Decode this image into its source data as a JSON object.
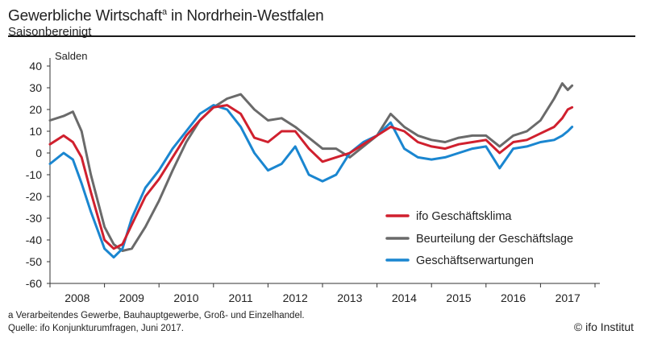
{
  "header": {
    "title": "Gewerbliche Wirtschaft",
    "title_mark": "a",
    "title_rest": " in Nordrhein-Westfalen",
    "subtitle": "Saisonbereinigt"
  },
  "footer": {
    "note": "a Verarbeitendes Gewerbe, Bauhauptgewerbe, Groß- und Einzelhandel.",
    "source": "Quelle: ifo Konjunkturumfragen, Juni 2017.",
    "credit": "© ifo Institut"
  },
  "chart_data": {
    "type": "line",
    "ylabel": "Salden",
    "ylim": [
      -60,
      40
    ],
    "yticks": [
      "40",
      "30",
      "20",
      "10",
      "0",
      "-10",
      "-20",
      "-30",
      "-40",
      "-50",
      "-60"
    ],
    "xlim": [
      2007.5,
      2017.5
    ],
    "categories": [
      "2008",
      "2009",
      "2010",
      "2011",
      "2012",
      "2013",
      "2014",
      "2015",
      "2016",
      "2017"
    ],
    "grid": false,
    "legend_position": "bottom-right",
    "series": [
      {
        "name": "ifo Geschäftsklima",
        "color": "#d0202e",
        "x": [
          2007.5,
          2007.75,
          2007.92,
          2008.08,
          2008.25,
          2008.5,
          2008.67,
          2008.83,
          2009.0,
          2009.25,
          2009.5,
          2009.75,
          2010.0,
          2010.25,
          2010.5,
          2010.75,
          2011.0,
          2011.25,
          2011.5,
          2011.75,
          2012.0,
          2012.25,
          2012.5,
          2012.75,
          2013.0,
          2013.25,
          2013.5,
          2013.75,
          2014.0,
          2014.25,
          2014.5,
          2014.75,
          2015.0,
          2015.25,
          2015.5,
          2015.75,
          2016.0,
          2016.25,
          2016.5,
          2016.75,
          2016.9,
          2017.0,
          2017.08
        ],
        "values": [
          4,
          8,
          5,
          -2,
          -18,
          -40,
          -44,
          -42,
          -33,
          -20,
          -12,
          -2,
          8,
          15,
          21,
          22,
          18,
          7,
          5,
          10,
          10,
          2,
          -4,
          -2,
          0,
          4,
          8,
          12,
          10,
          5,
          3,
          2,
          4,
          5,
          6,
          0,
          5,
          6,
          9,
          12,
          16,
          20,
          21
        ]
      },
      {
        "name": "Beurteilung der Geschäftslage",
        "color": "#6a6a6a",
        "x": [
          2007.5,
          2007.75,
          2007.92,
          2008.08,
          2008.25,
          2008.5,
          2008.67,
          2008.83,
          2009.0,
          2009.25,
          2009.5,
          2009.75,
          2010.0,
          2010.25,
          2010.5,
          2010.75,
          2011.0,
          2011.25,
          2011.5,
          2011.75,
          2012.0,
          2012.25,
          2012.5,
          2012.75,
          2013.0,
          2013.25,
          2013.5,
          2013.75,
          2014.0,
          2014.25,
          2014.5,
          2014.75,
          2015.0,
          2015.25,
          2015.5,
          2015.75,
          2016.0,
          2016.25,
          2016.5,
          2016.75,
          2016.9,
          2017.0,
          2017.08
        ],
        "values": [
          15,
          17,
          19,
          10,
          -10,
          -34,
          -42,
          -45,
          -44,
          -34,
          -22,
          -8,
          5,
          15,
          21,
          25,
          27,
          20,
          15,
          16,
          12,
          7,
          2,
          2,
          -2,
          3,
          8,
          18,
          12,
          8,
          6,
          5,
          7,
          8,
          8,
          3,
          8,
          10,
          15,
          25,
          32,
          29,
          31
        ]
      },
      {
        "name": "Geschäftserwartungen",
        "color": "#1a86d0",
        "x": [
          2007.5,
          2007.75,
          2007.92,
          2008.08,
          2008.25,
          2008.5,
          2008.67,
          2008.83,
          2009.0,
          2009.25,
          2009.5,
          2009.75,
          2010.0,
          2010.25,
          2010.5,
          2010.75,
          2011.0,
          2011.25,
          2011.5,
          2011.75,
          2012.0,
          2012.25,
          2012.5,
          2012.75,
          2013.0,
          2013.25,
          2013.5,
          2013.75,
          2014.0,
          2014.25,
          2014.5,
          2014.75,
          2015.0,
          2015.25,
          2015.5,
          2015.75,
          2016.0,
          2016.25,
          2016.5,
          2016.75,
          2016.9,
          2017.0,
          2017.08
        ],
        "values": [
          -5,
          0,
          -3,
          -14,
          -27,
          -44,
          -48,
          -44,
          -30,
          -16,
          -8,
          2,
          10,
          18,
          22,
          20,
          12,
          0,
          -8,
          -5,
          3,
          -10,
          -13,
          -10,
          0,
          5,
          8,
          14,
          2,
          -2,
          -3,
          -2,
          0,
          2,
          3,
          -7,
          2,
          3,
          5,
          6,
          8,
          10,
          12
        ]
      }
    ]
  }
}
